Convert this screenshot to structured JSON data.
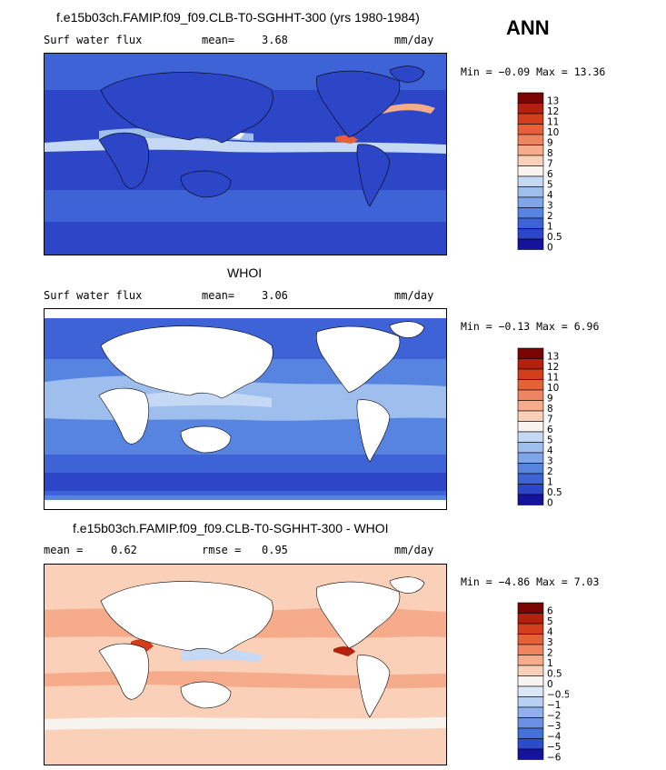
{
  "season": "ANN",
  "panels": [
    {
      "id": "model",
      "title": "f.e15b03ch.FAMIP.f09_f09.CLB-T0-SGHHT-300 (yrs 1980-1984)",
      "var_label": "Surf water flux",
      "stat_label": "mean=",
      "stat_value": "3.68",
      "stat2_label": "",
      "stat2_value": "",
      "units": "mm/day",
      "min_label": "Min =",
      "min_value": "−0.09",
      "max_label": "Max =",
      "max_value": "13.36",
      "colorbar_labels": [
        "13",
        "12",
        "11",
        "10",
        "9",
        "8",
        "7",
        "6",
        "5",
        "4",
        "3",
        "2",
        "1",
        "0.5",
        "0"
      ],
      "colorbar_colors": [
        "#7a0403",
        "#b4200e",
        "#d23e1c",
        "#e6603a",
        "#ef8460",
        "#f6ab8b",
        "#fbd0b8",
        "#f7f4ef",
        "#c5d9f4",
        "#9ebfee",
        "#7ea4ea",
        "#5884e1",
        "#3d63d6",
        "#2c46c7",
        "#15139a"
      ]
    },
    {
      "id": "obs",
      "title": "WHOI",
      "var_label": "Surf water flux",
      "stat_label": "mean=",
      "stat_value": "3.06",
      "stat2_label": "",
      "stat2_value": "",
      "units": "mm/day",
      "min_label": "Min =",
      "min_value": "−0.13",
      "max_label": "Max =",
      "max_value": "6.96",
      "colorbar_labels": [
        "13",
        "12",
        "11",
        "10",
        "9",
        "8",
        "7",
        "6",
        "5",
        "4",
        "3",
        "2",
        "1",
        "0.5",
        "0"
      ],
      "colorbar_colors": [
        "#7a0403",
        "#b4200e",
        "#d23e1c",
        "#e6603a",
        "#ef8460",
        "#f6ab8b",
        "#fbd0b8",
        "#f7f4ef",
        "#c5d9f4",
        "#9ebfee",
        "#7ea4ea",
        "#5884e1",
        "#3d63d6",
        "#2c46c7",
        "#15139a"
      ]
    },
    {
      "id": "diff",
      "title": "f.e15b03ch.FAMIP.f09_f09.CLB-T0-SGHHT-300 - WHOI",
      "var_label": "",
      "stat_label": "mean =",
      "stat_value": "0.62",
      "stat2_label": "rmse =",
      "stat2_value": "0.95",
      "units": "mm/day",
      "min_label": "Min =",
      "min_value": "−4.86",
      "max_label": "Max =",
      "max_value": "7.03",
      "colorbar_labels": [
        "6",
        "5",
        "4",
        "3",
        "2",
        "1",
        "0.5",
        "0",
        "−0.5",
        "−1",
        "−2",
        "−3",
        "−4",
        "−5",
        "−6"
      ],
      "colorbar_colors": [
        "#7a0403",
        "#b4200e",
        "#d23e1c",
        "#e6603a",
        "#ef8460",
        "#f6ab8b",
        "#fbd0b8",
        "#f7f4ef",
        "#dce8f8",
        "#b7cff2",
        "#8fb0ec",
        "#6a91e4",
        "#4470d9",
        "#2d4cc9",
        "#15139a"
      ]
    }
  ],
  "chart_data": [
    {
      "type": "heatmap",
      "title": "f.e15b03ch.FAMIP.f09_f09.CLB-T0-SGHHT-300 (yrs 1980-1984)",
      "variable": "Surf water flux",
      "units": "mm/day",
      "mean": 3.68,
      "min": -0.09,
      "max": 13.36,
      "contour_levels": [
        0,
        0.5,
        1,
        2,
        3,
        4,
        5,
        6,
        7,
        8,
        9,
        10,
        11,
        12,
        13
      ],
      "map": "global lat-lon"
    },
    {
      "type": "heatmap",
      "title": "WHOI",
      "variable": "Surf water flux",
      "units": "mm/day",
      "mean": 3.06,
      "min": -0.13,
      "max": 6.96,
      "contour_levels": [
        0,
        0.5,
        1,
        2,
        3,
        4,
        5,
        6,
        7,
        8,
        9,
        10,
        11,
        12,
        13
      ],
      "map": "global lat-lon, ocean only"
    },
    {
      "type": "heatmap",
      "title": "f.e15b03ch.FAMIP.f09_f09.CLB-T0-SGHHT-300 - WHOI",
      "units": "mm/day",
      "mean": 0.62,
      "rmse": 0.95,
      "min": -4.86,
      "max": 7.03,
      "contour_levels": [
        -6,
        -5,
        -4,
        -3,
        -2,
        -1,
        -0.5,
        0,
        0.5,
        1,
        2,
        3,
        4,
        5,
        6
      ],
      "map": "global lat-lon, ocean only"
    }
  ]
}
